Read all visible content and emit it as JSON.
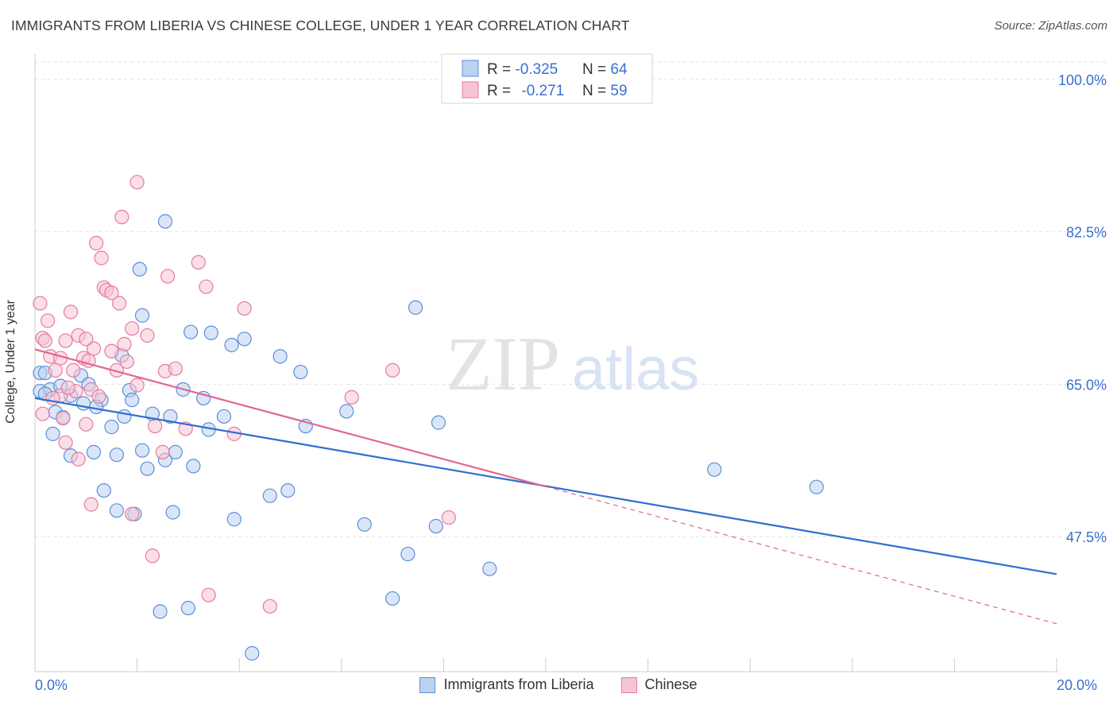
{
  "title": "IMMIGRANTS FROM LIBERIA VS CHINESE COLLEGE, UNDER 1 YEAR CORRELATION CHART",
  "source": "Source: ZipAtlas.com",
  "watermark": {
    "zip": "ZIP",
    "atlas": "atlas"
  },
  "colors": {
    "blue": "#5b8fd6",
    "blue_fill": "#bcd2f1",
    "pink": "#e77aa0",
    "pink_fill": "#f6c5d5",
    "blue_line": "#2e6fce",
    "pink_line": "#e26693",
    "axis_text": "#3a6fd0"
  },
  "chart_data": {
    "type": "scatter",
    "xlabel": "",
    "ylabel": "College, Under 1 year",
    "xlim": [
      0,
      20
    ],
    "ylim": [
      32,
      102
    ],
    "x_tick_labels": [
      "0.0%",
      "20.0%"
    ],
    "y_ticks": [
      47.5,
      65.0,
      82.5,
      100.0
    ],
    "y_tick_labels": [
      "47.5%",
      "65.0%",
      "82.5%",
      "100.0%"
    ],
    "legend": [
      {
        "name": "Immigrants from Liberia",
        "r_label": "R = ",
        "r": "-0.325",
        "n_label": "N = ",
        "n": "64"
      },
      {
        "name": "Chinese",
        "r_label": "R = ",
        "r": "-0.271",
        "n_label": "N = ",
        "n": "59"
      }
    ],
    "series": [
      {
        "name": "Immigrants from Liberia",
        "trend": {
          "x": [
            0,
            20
          ],
          "y": [
            63.4,
            43.2
          ],
          "dashed_from": null
        },
        "points": [
          [
            0.1,
            66.3
          ],
          [
            0.1,
            64.2
          ],
          [
            0.2,
            66.3
          ],
          [
            0.3,
            64.4
          ],
          [
            0.4,
            61.8
          ],
          [
            0.5,
            64.8
          ],
          [
            0.2,
            63.9
          ],
          [
            0.35,
            59.3
          ],
          [
            0.55,
            61.2
          ],
          [
            0.7,
            63.7
          ],
          [
            0.9,
            66.0
          ],
          [
            1.05,
            65.0
          ],
          [
            0.95,
            62.8
          ],
          [
            1.3,
            63.2
          ],
          [
            1.5,
            60.1
          ],
          [
            1.6,
            56.9
          ],
          [
            1.75,
            61.3
          ],
          [
            1.85,
            64.3
          ],
          [
            1.9,
            63.2
          ],
          [
            1.7,
            68.3
          ],
          [
            2.1,
            57.4
          ],
          [
            2.2,
            55.3
          ],
          [
            2.3,
            61.6
          ],
          [
            2.1,
            72.9
          ],
          [
            2.05,
            78.2
          ],
          [
            2.55,
            83.7
          ],
          [
            2.65,
            61.3
          ],
          [
            2.75,
            57.2
          ],
          [
            2.9,
            64.4
          ],
          [
            3.1,
            55.6
          ],
          [
            3.05,
            71.0
          ],
          [
            3.3,
            63.4
          ],
          [
            3.4,
            59.8
          ],
          [
            3.45,
            70.9
          ],
          [
            3.7,
            61.3
          ],
          [
            3.85,
            69.5
          ],
          [
            4.1,
            70.2
          ],
          [
            3.9,
            49.5
          ],
          [
            4.6,
            52.2
          ],
          [
            4.95,
            52.8
          ],
          [
            4.8,
            68.2
          ],
          [
            5.2,
            66.4
          ],
          [
            5.3,
            60.2
          ],
          [
            6.1,
            61.9
          ],
          [
            6.45,
            48.9
          ],
          [
            7.0,
            40.4
          ],
          [
            7.3,
            45.5
          ],
          [
            7.45,
            73.8
          ],
          [
            7.85,
            48.7
          ],
          [
            7.9,
            60.6
          ],
          [
            8.9,
            43.8
          ],
          [
            13.3,
            55.2
          ],
          [
            15.3,
            53.2
          ],
          [
            1.15,
            57.2
          ],
          [
            0.7,
            56.8
          ],
          [
            1.35,
            52.8
          ],
          [
            1.6,
            50.5
          ],
          [
            1.95,
            50.1
          ],
          [
            2.7,
            50.3
          ],
          [
            3.0,
            39.3
          ],
          [
            2.45,
            38.9
          ],
          [
            4.25,
            34.1
          ],
          [
            2.55,
            56.3
          ],
          [
            1.2,
            62.4
          ]
        ]
      },
      {
        "name": "Chinese",
        "trend": {
          "x": [
            0,
            20
          ],
          "y": [
            69.0,
            37.5
          ],
          "dashed_from": 10.0
        },
        "points": [
          [
            0.1,
            74.3
          ],
          [
            0.15,
            70.3
          ],
          [
            0.25,
            72.3
          ],
          [
            0.3,
            68.2
          ],
          [
            0.4,
            66.6
          ],
          [
            0.5,
            63.7
          ],
          [
            0.55,
            61.1
          ],
          [
            0.6,
            58.3
          ],
          [
            0.6,
            70.0
          ],
          [
            0.75,
            66.6
          ],
          [
            0.7,
            73.3
          ],
          [
            0.8,
            64.2
          ],
          [
            0.85,
            70.6
          ],
          [
            0.95,
            68.0
          ],
          [
            1.0,
            60.4
          ],
          [
            1.1,
            64.4
          ],
          [
            1.15,
            69.1
          ],
          [
            1.2,
            81.2
          ],
          [
            1.3,
            79.5
          ],
          [
            1.35,
            76.1
          ],
          [
            1.4,
            75.8
          ],
          [
            1.5,
            68.8
          ],
          [
            1.6,
            66.6
          ],
          [
            1.65,
            74.3
          ],
          [
            1.75,
            69.6
          ],
          [
            1.8,
            67.6
          ],
          [
            1.9,
            71.4
          ],
          [
            2.0,
            64.9
          ],
          [
            2.2,
            70.6
          ],
          [
            2.35,
            60.2
          ],
          [
            2.5,
            57.2
          ],
          [
            2.55,
            66.5
          ],
          [
            2.6,
            77.4
          ],
          [
            2.95,
            59.9
          ],
          [
            3.2,
            79.0
          ],
          [
            3.35,
            76.2
          ],
          [
            3.9,
            59.3
          ],
          [
            4.1,
            73.7
          ],
          [
            6.2,
            63.5
          ],
          [
            7.0,
            66.6
          ],
          [
            8.1,
            49.7
          ],
          [
            1.9,
            50.1
          ],
          [
            2.3,
            45.3
          ],
          [
            3.4,
            40.8
          ],
          [
            4.6,
            39.5
          ],
          [
            1.1,
            51.2
          ],
          [
            0.85,
            56.4
          ],
          [
            2.0,
            88.2
          ],
          [
            1.7,
            84.2
          ],
          [
            1.0,
            70.2
          ],
          [
            0.5,
            68.0
          ],
          [
            0.2,
            70.0
          ],
          [
            1.25,
            63.6
          ],
          [
            1.5,
            75.5
          ],
          [
            0.35,
            63.4
          ],
          [
            0.65,
            64.6
          ],
          [
            1.05,
            67.7
          ],
          [
            2.75,
            66.8
          ],
          [
            0.15,
            61.6
          ]
        ]
      }
    ]
  }
}
